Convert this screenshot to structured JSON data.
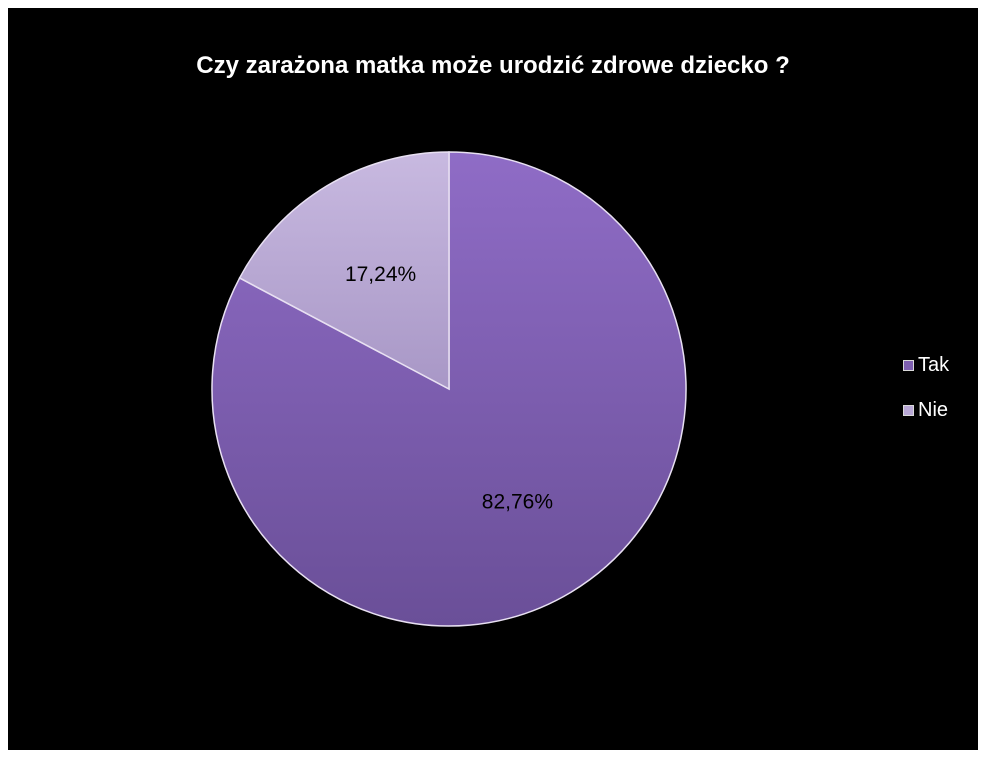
{
  "chart_data": {
    "type": "pie",
    "title": "Czy zarażona matka może urodzić zdrowe dziecko ?",
    "categories": [
      "Tak",
      "Nie"
    ],
    "values": [
      82.76,
      17.24
    ],
    "data_labels": [
      "82,76%",
      "17,24%"
    ],
    "colors": [
      "#7e5fb0",
      "#b9a8d6"
    ],
    "legend": {
      "position": "right",
      "entries": [
        "Tak",
        "Nie"
      ]
    }
  }
}
